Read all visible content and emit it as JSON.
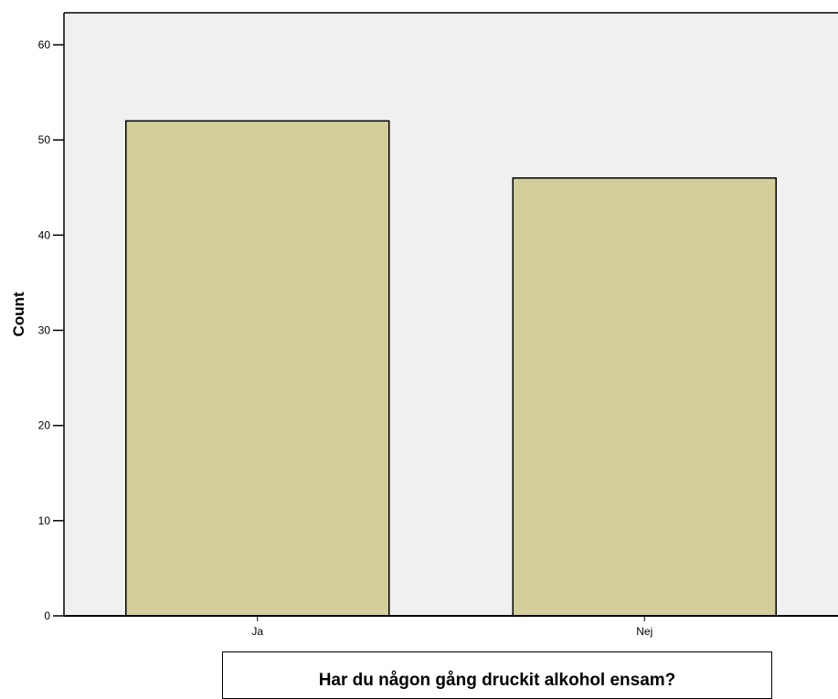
{
  "chart_data": {
    "type": "bar",
    "categories": [
      "Ja",
      "Nej"
    ],
    "values": [
      52,
      46
    ],
    "xlabel": "Har du någon gång druckit alkohol ensam?",
    "ylabel": "Count",
    "ylim": [
      0,
      60
    ],
    "yticks": [
      0,
      10,
      20,
      30,
      40,
      50,
      60
    ],
    "grid": false,
    "legend": "none"
  },
  "colors": {
    "plot_background": "#f0f0f0",
    "bar_fill": "#d3ce9a",
    "bar_stroke": "#000000"
  }
}
